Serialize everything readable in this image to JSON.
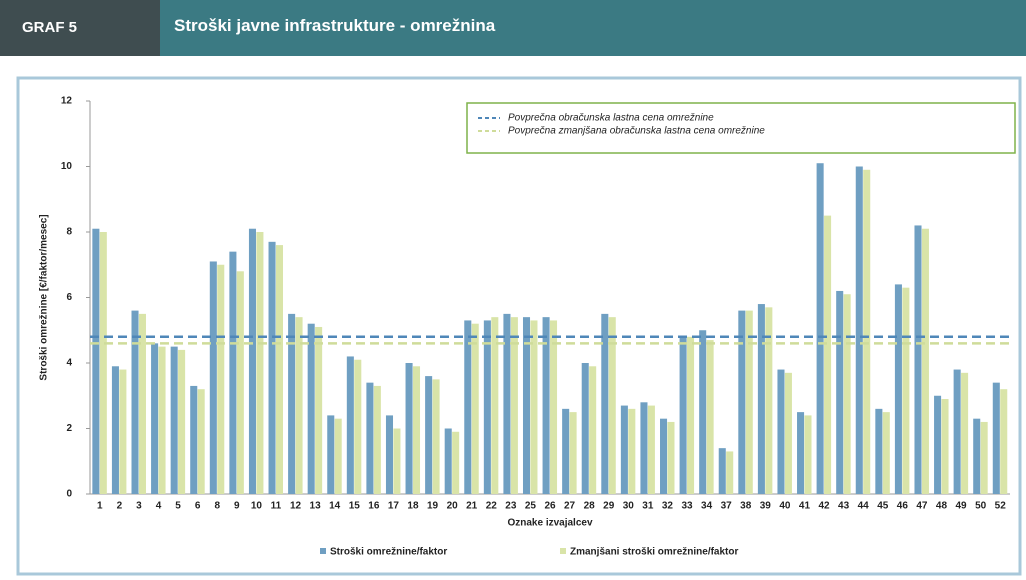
{
  "header": {
    "label": "GRAF 5",
    "title": "Stroški javne infrastrukture - omrežnina"
  },
  "chart_data": {
    "type": "bar",
    "y_label": "Stroški omrežnine [€/faktor/mesec]",
    "x_label": "Oznake izvajalcev",
    "categories": [
      "1",
      "2",
      "3",
      "4",
      "5",
      "6",
      "8",
      "9",
      "10",
      "11",
      "12",
      "13",
      "14",
      "15",
      "16",
      "17",
      "18",
      "19",
      "20",
      "21",
      "22",
      "23",
      "25",
      "26",
      "27",
      "28",
      "29",
      "30",
      "31",
      "32",
      "33",
      "34",
      "37",
      "38",
      "39",
      "40",
      "41",
      "42",
      "43",
      "44",
      "45",
      "46",
      "47",
      "48",
      "49",
      "50",
      "52"
    ],
    "series": [
      {
        "name": "Stroški omrežnine/faktor",
        "color": "#6f9fc2",
        "values": [
          8.1,
          3.9,
          5.6,
          4.6,
          4.5,
          3.3,
          7.1,
          7.4,
          8.1,
          7.7,
          5.5,
          5.2,
          2.4,
          4.2,
          3.4,
          2.4,
          4.0,
          3.6,
          2.0,
          5.3,
          5.3,
          5.5,
          5.4,
          5.4,
          2.6,
          4.0,
          5.5,
          2.7,
          2.8,
          2.3,
          4.8,
          5.0,
          1.4,
          5.6,
          5.8,
          3.8,
          2.5,
          10.1,
          6.2,
          10.0,
          2.6,
          6.4,
          8.2,
          3.0,
          3.8,
          2.3,
          3.4
        ]
      },
      {
        "name": "Zmanjšani stroški omrežnine/faktor",
        "color": "#d9e4a8",
        "values": [
          8.0,
          3.8,
          5.5,
          4.5,
          4.4,
          3.2,
          7.0,
          6.8,
          8.0,
          7.6,
          5.4,
          5.1,
          2.3,
          4.1,
          3.3,
          2.0,
          3.9,
          3.5,
          1.9,
          5.2,
          5.4,
          5.4,
          5.3,
          5.3,
          2.5,
          3.9,
          5.4,
          2.6,
          2.7,
          2.2,
          4.8,
          4.7,
          1.3,
          5.6,
          5.7,
          3.7,
          2.4,
          8.5,
          6.1,
          9.9,
          2.5,
          6.3,
          8.1,
          2.9,
          3.7,
          2.2,
          3.2
        ]
      }
    ],
    "reference_lines": [
      {
        "name": "Povprečna obračunska lastna cena omrežnine",
        "value": 4.8,
        "color": "#4f87b8"
      },
      {
        "name": "Povprečna zmanjšana obračunska lastna cena omrežnine",
        "value": 4.6,
        "color": "#cfdc9a"
      }
    ],
    "ylim": [
      0,
      12
    ],
    "yticks": [
      0,
      2,
      4,
      6,
      8,
      10,
      12
    ]
  }
}
